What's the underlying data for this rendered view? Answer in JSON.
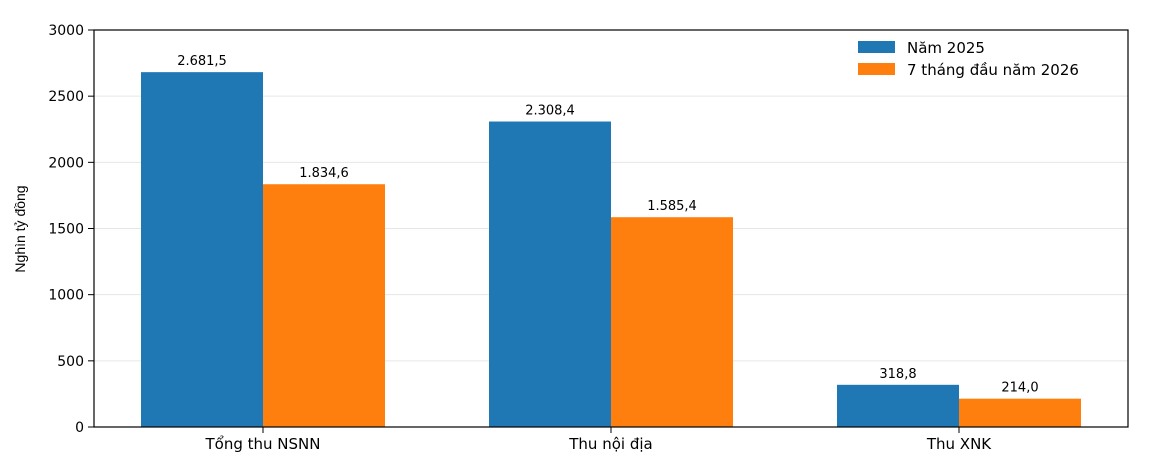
{
  "chart_data": {
    "type": "bar",
    "title": "",
    "xlabel": "",
    "ylabel": "Nghìn tỷ đồng",
    "ylim": [
      0,
      3000
    ],
    "yticks": [
      0,
      500,
      1000,
      1500,
      2000,
      2500,
      3000
    ],
    "categories": [
      "Tổng thu NSNN",
      "Thu nội địa",
      "Thu XNK"
    ],
    "series": [
      {
        "name": "Năm 2025",
        "color": "#1f77b4",
        "values": [
          2681.5,
          2308.4,
          318.8
        ],
        "labels": [
          "2.681,5",
          "2.308,4",
          "318,8"
        ]
      },
      {
        "name": "7 tháng đầu năm 2026",
        "color": "#ff7f0e",
        "values": [
          1834.6,
          1585.4,
          214.0
        ],
        "labels": [
          "1.834,6",
          "1.585,4",
          "214,0"
        ]
      }
    ],
    "grid": true,
    "legend": "top-right"
  }
}
